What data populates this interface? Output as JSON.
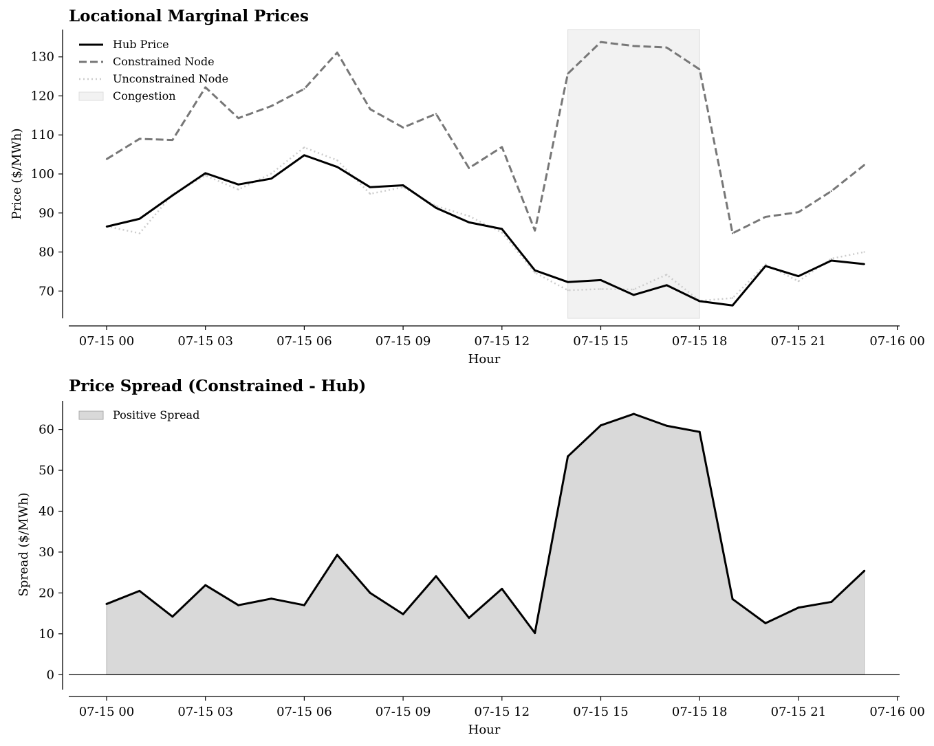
{
  "chart_data": [
    {
      "type": "line",
      "title": "Locational Marginal Prices",
      "xlabel": "Hour",
      "ylabel": "Price ($/MWh)",
      "x": [
        "07-15 00",
        "07-15 01",
        "07-15 02",
        "07-15 03",
        "07-15 04",
        "07-15 05",
        "07-15 06",
        "07-15 07",
        "07-15 08",
        "07-15 09",
        "07-15 10",
        "07-15 11",
        "07-15 12",
        "07-15 13",
        "07-15 14",
        "07-15 15",
        "07-15 16",
        "07-15 17",
        "07-15 18",
        "07-15 19",
        "07-15 20",
        "07-15 21",
        "07-15 22",
        "07-15 23"
      ],
      "xticks": [
        "07-15 00",
        "07-15 03",
        "07-15 06",
        "07-15 09",
        "07-15 12",
        "07-15 15",
        "07-15 18",
        "07-15 21",
        "07-16 00"
      ],
      "yticks": [
        70,
        80,
        90,
        100,
        110,
        120,
        130
      ],
      "ylim": [
        63,
        137
      ],
      "series": [
        {
          "name": "Hub Price",
          "style": "solid",
          "color": "#000000",
          "values": [
            86.5,
            88.5,
            94.5,
            100.2,
            97.3,
            98.8,
            104.8,
            101.8,
            96.6,
            97.1,
            91.3,
            87.6,
            85.9,
            75.3,
            72.3,
            72.8,
            69.0,
            71.5,
            67.4,
            66.3,
            76.4,
            73.8,
            77.8,
            76.9
          ]
        },
        {
          "name": "Constrained Node",
          "style": "dashed",
          "color": "#777777",
          "values": [
            103.8,
            109.0,
            108.7,
            122.2,
            114.3,
            117.4,
            121.8,
            131.1,
            116.6,
            111.9,
            115.4,
            101.5,
            106.9,
            85.5,
            125.7,
            133.8,
            132.8,
            132.4,
            126.8,
            84.8,
            89.0,
            90.2,
            95.6,
            102.3
          ]
        },
        {
          "name": "Unconstrained Node",
          "style": "dotted",
          "color": "#cccccc",
          "values": [
            86.6,
            84.8,
            94.8,
            99.6,
            96.0,
            100.1,
            106.8,
            103.5,
            94.9,
            96.6,
            91.8,
            89.2,
            85.0,
            74.7,
            70.2,
            70.5,
            70.4,
            74.2,
            67.5,
            68.2,
            76.8,
            72.5,
            78.3,
            80.0
          ]
        }
      ],
      "shaded_region": {
        "name": "Congestion",
        "x_start": "07-15 14",
        "x_end": "07-15 18",
        "color": "#f2f2f2"
      },
      "legend": {
        "position": "top-left",
        "entries": [
          "Hub Price",
          "Constrained Node",
          "Unconstrained Node",
          "Congestion"
        ]
      }
    },
    {
      "type": "area",
      "title": "Price Spread (Constrained - Hub)",
      "xlabel": "Hour",
      "ylabel": "Spread ($/MWh)",
      "x": [
        "07-15 00",
        "07-15 01",
        "07-15 02",
        "07-15 03",
        "07-15 04",
        "07-15 05",
        "07-15 06",
        "07-15 07",
        "07-15 08",
        "07-15 09",
        "07-15 10",
        "07-15 11",
        "07-15 12",
        "07-15 13",
        "07-15 14",
        "07-15 15",
        "07-15 16",
        "07-15 17",
        "07-15 18",
        "07-15 19",
        "07-15 20",
        "07-15 21",
        "07-15 22",
        "07-15 23"
      ],
      "xticks": [
        "07-15 00",
        "07-15 03",
        "07-15 06",
        "07-15 09",
        "07-15 12",
        "07-15 15",
        "07-15 18",
        "07-15 21",
        "07-16 00"
      ],
      "yticks": [
        0,
        10,
        20,
        30,
        40,
        50,
        60
      ],
      "ylim": [
        -4.5,
        67
      ],
      "series": [
        {
          "name": "Positive Spread",
          "color": "#d9d9d9",
          "line_color": "#000000",
          "values": [
            17.3,
            20.5,
            14.2,
            21.9,
            17.0,
            18.6,
            17.0,
            29.3,
            20.0,
            14.8,
            24.1,
            13.9,
            21.0,
            10.2,
            53.4,
            61.0,
            63.8,
            60.9,
            59.4,
            18.5,
            12.6,
            16.4,
            17.8,
            25.4
          ]
        }
      ],
      "legend": {
        "position": "top-left",
        "entries": [
          "Positive Spread"
        ]
      }
    }
  ]
}
